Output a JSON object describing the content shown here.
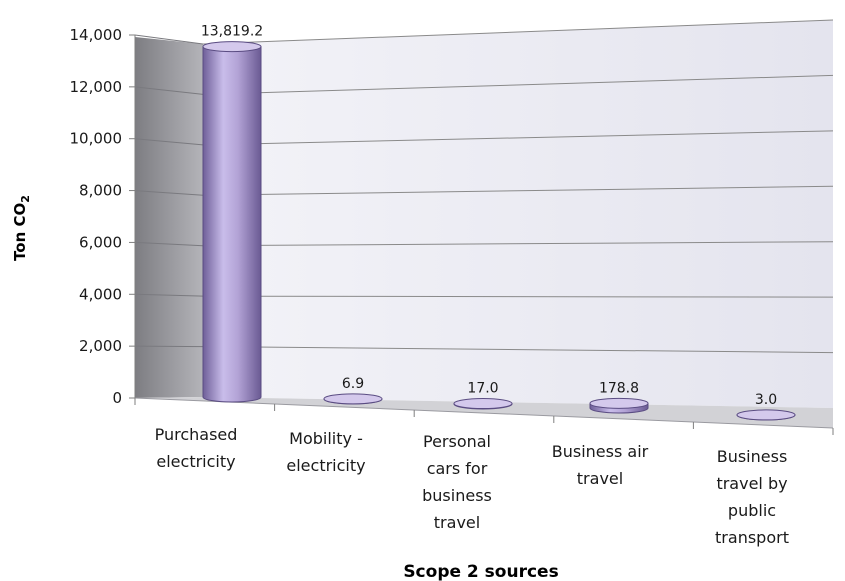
{
  "chart_data": {
    "type": "bar",
    "style": "3d-cylinder",
    "categories": [
      [
        "Purchased",
        "electricity"
      ],
      [
        "Mobility -",
        "electricity"
      ],
      [
        "Personal",
        "cars for",
        "business",
        "travel"
      ],
      [
        "Business air",
        "travel"
      ],
      [
        "Business",
        "travel by",
        "public",
        "transport"
      ]
    ],
    "values": [
      13819.2,
      6.9,
      17.0,
      178.8,
      3.0
    ],
    "data_labels": [
      "13,819.2",
      "6.9",
      "17.0",
      "178.8",
      "3.0"
    ],
    "xlabel": "Scope 2 sources",
    "ylabel": {
      "main": "Ton CO",
      "subscript": "2"
    },
    "ylim": [
      0,
      14000
    ],
    "yticks": [
      "0",
      "2,000",
      "4,000",
      "6,000",
      "8,000",
      "10,000",
      "12,000",
      "14,000"
    ],
    "ytick_values": [
      0,
      2000,
      4000,
      6000,
      8000,
      10000,
      12000,
      14000
    ],
    "grid": true,
    "legend": "none",
    "colors": {
      "bar_side": "#b7a8d6",
      "bar_dark": "#6f5f99",
      "bar_top": "#d4c9ec",
      "wall": "#ececf3",
      "side_wall": "#9a9aa0",
      "floor": "#d2d2d6",
      "grid": "#8a8a8a"
    }
  }
}
